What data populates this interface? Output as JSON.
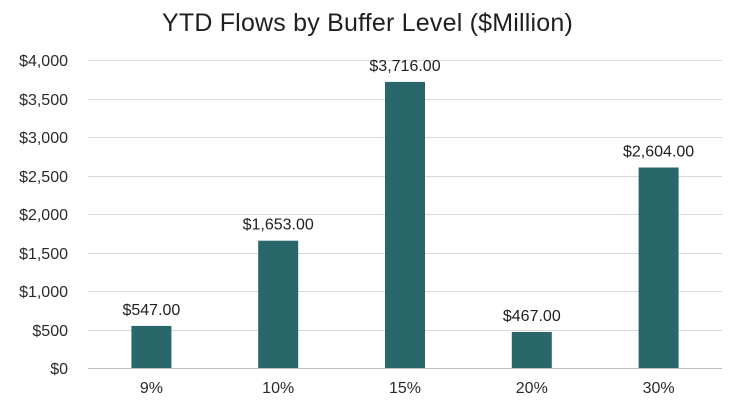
{
  "chart_data": {
    "type": "bar",
    "title": "YTD Flows by Buffer Level ($Million)",
    "xlabel": "",
    "ylabel": "",
    "categories": [
      "9%",
      "10%",
      "15%",
      "20%",
      "30%"
    ],
    "values": [
      547,
      1653,
      3716,
      467,
      2604
    ],
    "data_labels": [
      "$547.00",
      "$1,653.00",
      "$3,716.00",
      "$467.00",
      "$2,604.00"
    ],
    "ylim": [
      0,
      4000
    ],
    "y_ticks": [
      0,
      500,
      1000,
      1500,
      2000,
      2500,
      3000,
      3500,
      4000
    ],
    "y_tick_labels": [
      "$0",
      "$500",
      "$1,000",
      "$1,500",
      "$2,000",
      "$2,500",
      "$3,000",
      "$3,500",
      "$4,000"
    ],
    "grid": true,
    "legend": "none",
    "bar_color": "#2a676b"
  }
}
